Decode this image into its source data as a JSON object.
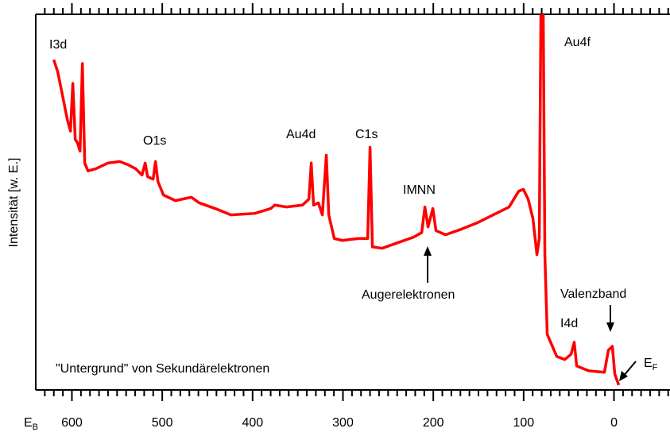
{
  "chart_data": {
    "type": "line",
    "ylabel": "Intensität [w. E.]",
    "xlabel": {
      "text": "E",
      "sub": "B"
    },
    "xlim": [
      640,
      -62
    ],
    "ylim": [
      0,
      100
    ],
    "xticks": [
      600,
      500,
      400,
      300,
      200,
      100,
      0
    ],
    "xminorticks": [
      630,
      620,
      610,
      590,
      580,
      570,
      560,
      550,
      540,
      530,
      520,
      510,
      490,
      480,
      470,
      460,
      450,
      440,
      430,
      420,
      410,
      390,
      380,
      370,
      360,
      350,
      340,
      330,
      320,
      310,
      290,
      280,
      270,
      260,
      250,
      240,
      230,
      220,
      210,
      190,
      180,
      170,
      160,
      150,
      140,
      130,
      120,
      110,
      90,
      80,
      70,
      60,
      50,
      40,
      30,
      20,
      10,
      -10,
      -20,
      -30,
      -40,
      -50,
      -60
    ],
    "series": [
      {
        "color": "#ff0000",
        "x": [
          620.1,
          615.7,
          610.4,
          605.1,
          601.6,
          599.0,
          596.3,
          593.7,
          591.0,
          588.4,
          585.8,
          582.2,
          573.4,
          560.2,
          547.1,
          538.3,
          529.5,
          522.4,
          518.9,
          516.3,
          510.1,
          507.5,
          504.8,
          498.7,
          485.5,
          467.9,
          459.1,
          441.5,
          423.9,
          397.5,
          379.9,
          375.5,
          362.4,
          344.8,
          337.7,
          335.1,
          332.5,
          327.2,
          322.8,
          318.4,
          315.7,
          309.6,
          300.8,
          283.2,
          272.6,
          270.0,
          267.4,
          256.8,
          239.2,
          221.6,
          212.8,
          209.3,
          205.8,
          200.5,
          197.0,
          186.5,
          168.9,
          151.3,
          133.7,
          116.1,
          105.5,
          100.3,
          95.0,
          89.7,
          85.3,
          82.7,
          80.9,
          78.3,
          76.5,
          73.9,
          63.3,
          54.5,
          47.5,
          44.0,
          41.3,
          28.1,
          10.6,
          6.2,
          1.8,
          -0.9,
          -5.3
        ],
        "values": [
          87.9,
          84.7,
          78.4,
          72.0,
          68.9,
          81.6,
          66.7,
          65.7,
          63.6,
          86.9,
          60.4,
          58.3,
          58.9,
          60.4,
          60.8,
          60.0,
          58.9,
          57.2,
          60.4,
          56.8,
          56.1,
          60.8,
          55.5,
          51.9,
          50.4,
          51.3,
          49.8,
          48.3,
          46.6,
          47.0,
          48.3,
          49.2,
          48.7,
          49.2,
          50.8,
          60.4,
          49.2,
          49.8,
          46.6,
          62.5,
          46.6,
          40.3,
          39.8,
          40.3,
          40.3,
          64.6,
          38.1,
          37.7,
          39.2,
          40.7,
          41.9,
          48.7,
          43.4,
          48.3,
          42.4,
          41.3,
          42.8,
          44.5,
          46.6,
          48.7,
          52.9,
          53.4,
          50.8,
          45.6,
          36.0,
          40.3,
          100,
          100,
          36.0,
          14.8,
          8.9,
          8.1,
          9.5,
          12.7,
          6.4,
          5.1,
          4.7,
          10.6,
          11.6,
          4.2,
          1.3
        ]
      }
    ],
    "annotations": [
      {
        "text": "I3d"
      },
      {
        "text": "O1s"
      },
      {
        "text": "Au4d"
      },
      {
        "text": "C1s"
      },
      {
        "text": "IMNN"
      },
      {
        "text": "Augerelektronen"
      },
      {
        "text": "Au4f"
      },
      {
        "text": "Valenzband"
      },
      {
        "text": "I4d"
      },
      {
        "text": "E",
        "sub": "F"
      },
      {
        "text": "\"Untergrund\" von Sekundärelektronen"
      }
    ]
  }
}
